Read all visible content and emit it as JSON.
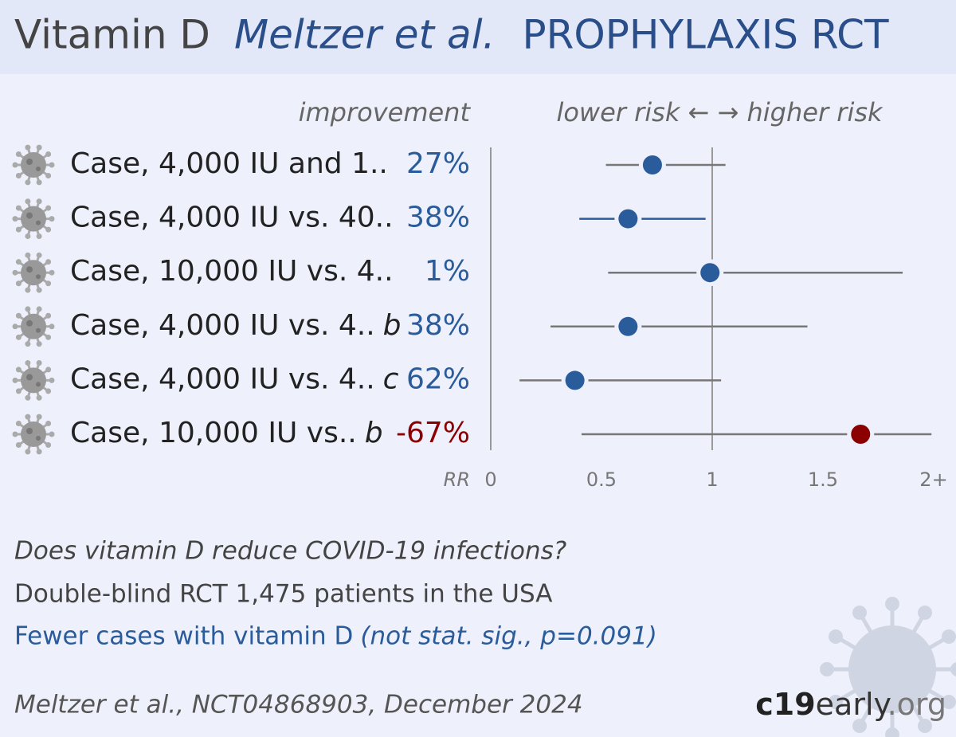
{
  "chart_data": {
    "type": "forest",
    "title": {
      "drug": "Vitamin D",
      "authors": "Meltzer et al.",
      "kind": "PROPHYLAXIS RCT"
    },
    "improvement_header": "improvement",
    "direction_header": "lower risk ← → higher risk",
    "x_label": "RR",
    "categories": [
      "Case, 4,000 IU and 1..",
      "Case, 4,000 IU vs. 40..",
      "Case, 10,000 IU vs. 4..",
      "Case, 4,000 IU vs. 4..",
      "Case, 4,000 IU vs. 4..",
      "Case, 10,000 IU vs.."
    ],
    "category_suffixes": [
      null,
      null,
      null,
      "b",
      "c",
      "b"
    ],
    "values": [
      0.73,
      0.62,
      0.99,
      0.62,
      0.38,
      1.67
    ],
    "ci_low": [
      0.52,
      0.4,
      0.53,
      0.27,
      0.13,
      0.41
    ],
    "ci_high": [
      1.06,
      0.97,
      1.86,
      1.43,
      1.04,
      1.99
    ],
    "improvement": [
      27,
      38,
      1,
      38,
      62,
      -67
    ],
    "improvement_labels": [
      "27%",
      "38%",
      "1%",
      "38%",
      "62%",
      "-67%"
    ],
    "point_colors": [
      "#2a5b9b",
      "#2a5b9b",
      "#2a5b9b",
      "#2a5b9b",
      "#2a5b9b",
      "#8b0000"
    ],
    "ci_colors": [
      "#777777",
      "#2a5b9b",
      "#777777",
      "#777777",
      "#777777",
      "#777777"
    ],
    "label_colors": [
      "#2a5b9b",
      "#2a5b9b",
      "#2a5b9b",
      "#2a5b9b",
      "#2a5b9b",
      "#8b0000"
    ],
    "xlim": [
      0,
      2
    ],
    "xticks": [
      0,
      0.5,
      1,
      1.5,
      {
        "value": 2,
        "label": "2+"
      }
    ],
    "reference": 1
  },
  "footer": {
    "question": "Does vitamin D reduce COVID-19 infections?",
    "design": "Double-blind RCT 1,475 patients in the USA",
    "result": "Fewer cases with vitamin D",
    "result_note": "(not stat. sig., p=0.091)",
    "citation": "Meltzer et al., NCT04868903, December 2024",
    "brand": [
      "c19",
      "early",
      ".org"
    ]
  }
}
